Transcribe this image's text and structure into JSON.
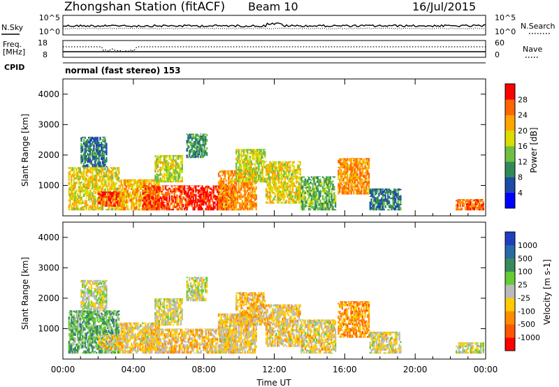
{
  "header": {
    "station": "Zhongshan Station (fitACF)",
    "beam": "Beam 10",
    "date": "16/Jul/2015"
  },
  "top_panels": {
    "nsky_label": "N.Sky",
    "nsky_ticks": [
      "10^5",
      "10^0"
    ],
    "nsearch_label": "N.Search",
    "nsearch_ticks": [
      "10^5",
      "10^0"
    ],
    "freq_label_1": "Freq.",
    "freq_label_2": "[MHz]",
    "freq_ticks": [
      "18",
      "8"
    ],
    "nave_label": "Nave",
    "nave_ticks": [
      "60",
      "0"
    ],
    "cpid_label": "CPID",
    "cpid_text": "normal (fast stereo) 153"
  },
  "power_panel": {
    "ylabel": "Slant Range [km]",
    "yticks": [
      "4000",
      "3000",
      "2000",
      "1000"
    ],
    "colorbar_label": "Power [dB]",
    "colorbar_ticks": [
      "28",
      "24",
      "20",
      "16",
      "12",
      "8",
      "4"
    ],
    "colors": [
      "#0000ff",
      "#1e4aa8",
      "#2e8b57",
      "#6fbf45",
      "#dcdc00",
      "#ffa500",
      "#ff6600",
      "#ff0000"
    ]
  },
  "velocity_panel": {
    "ylabel": "Slant Range [km]",
    "yticks": [
      "4000",
      "3000",
      "2000",
      "1000"
    ],
    "colorbar_label": "Velocity [m s-1]",
    "colorbar_ticks": [
      "1000",
      "500",
      "100",
      "25",
      "-25",
      "-100",
      "-500",
      "-1000"
    ],
    "colors": [
      "#1f3fbf",
      "#2a6aa8",
      "#3a8a5a",
      "#66cc33",
      "#bbbbbb",
      "#ffcc00",
      "#ff8c00",
      "#ff5500",
      "#ff0000"
    ]
  },
  "xaxis": {
    "label": "Time UT",
    "ticks": [
      "00:00",
      "04:00",
      "08:00",
      "12:00",
      "16:00",
      "20:00",
      "00:00"
    ]
  },
  "chart_data": [
    {
      "type": "heatmap",
      "name": "power",
      "x_range_hours": [
        0,
        24
      ],
      "ylim": [
        0,
        4500
      ],
      "value_range": [
        0,
        30
      ],
      "blobs": [
        {
          "t0": 0.3,
          "t1": 3.2,
          "r0": 180,
          "r1": 1600,
          "v": 18
        },
        {
          "t0": 1.0,
          "t1": 2.5,
          "r0": 1600,
          "r1": 2600,
          "v": 8
        },
        {
          "t0": 2.0,
          "t1": 3.5,
          "r0": 300,
          "r1": 800,
          "v": 26
        },
        {
          "t0": 3.2,
          "t1": 5.5,
          "r0": 180,
          "r1": 1200,
          "v": 20
        },
        {
          "t0": 4.5,
          "t1": 7.0,
          "r0": 180,
          "r1": 1000,
          "v": 26
        },
        {
          "t0": 5.2,
          "t1": 6.8,
          "r0": 1100,
          "r1": 2000,
          "v": 16
        },
        {
          "t0": 7.0,
          "t1": 9.8,
          "r0": 180,
          "r1": 1000,
          "v": 28
        },
        {
          "t0": 7.0,
          "t1": 8.2,
          "r0": 1900,
          "r1": 2700,
          "v": 10
        },
        {
          "t0": 8.8,
          "t1": 11.0,
          "r0": 180,
          "r1": 1500,
          "v": 22
        },
        {
          "t0": 9.8,
          "t1": 11.5,
          "r0": 1100,
          "r1": 2200,
          "v": 16
        },
        {
          "t0": 11.5,
          "t1": 13.5,
          "r0": 400,
          "r1": 1800,
          "v": 18
        },
        {
          "t0": 13.5,
          "t1": 15.5,
          "r0": 180,
          "r1": 1300,
          "v": 12
        },
        {
          "t0": 15.6,
          "t1": 17.4,
          "r0": 700,
          "r1": 1900,
          "v": 22
        },
        {
          "t0": 17.4,
          "t1": 19.2,
          "r0": 180,
          "r1": 900,
          "v": 8
        },
        {
          "t0": 22.3,
          "t1": 23.9,
          "r0": 180,
          "r1": 550,
          "v": 24
        }
      ]
    },
    {
      "type": "heatmap",
      "name": "velocity",
      "x_range_hours": [
        0,
        24
      ],
      "ylim": [
        0,
        4500
      ],
      "value_range": [
        -1000,
        1000
      ],
      "blobs": [
        {
          "t0": 0.3,
          "t1": 3.2,
          "r0": 180,
          "r1": 1600,
          "v": 300
        },
        {
          "t0": 1.0,
          "t1": 2.5,
          "r0": 1600,
          "r1": 2600,
          "v": 0
        },
        {
          "t0": 2.0,
          "t1": 3.5,
          "r0": 300,
          "r1": 800,
          "v": -200
        },
        {
          "t0": 3.2,
          "t1": 5.5,
          "r0": 180,
          "r1": 1200,
          "v": -150
        },
        {
          "t0": 4.5,
          "t1": 7.0,
          "r0": 180,
          "r1": 1000,
          "v": -200
        },
        {
          "t0": 5.2,
          "t1": 6.8,
          "r0": 1100,
          "r1": 2000,
          "v": -50
        },
        {
          "t0": 7.0,
          "t1": 9.8,
          "r0": 180,
          "r1": 1000,
          "v": -200
        },
        {
          "t0": 7.0,
          "t1": 8.2,
          "r0": 1900,
          "r1": 2700,
          "v": 0
        },
        {
          "t0": 8.8,
          "t1": 11.0,
          "r0": 180,
          "r1": 1500,
          "v": -150
        },
        {
          "t0": 9.8,
          "t1": 11.5,
          "r0": 1100,
          "r1": 2200,
          "v": -250
        },
        {
          "t0": 11.5,
          "t1": 13.5,
          "r0": 400,
          "r1": 1800,
          "v": -150
        },
        {
          "t0": 13.5,
          "t1": 15.5,
          "r0": 180,
          "r1": 1300,
          "v": -120
        },
        {
          "t0": 15.6,
          "t1": 17.4,
          "r0": 700,
          "r1": 1900,
          "v": -400
        },
        {
          "t0": 17.4,
          "t1": 19.2,
          "r0": 180,
          "r1": 900,
          "v": -100
        },
        {
          "t0": 22.3,
          "t1": 23.9,
          "r0": 180,
          "r1": 550,
          "v": -60
        }
      ]
    }
  ]
}
